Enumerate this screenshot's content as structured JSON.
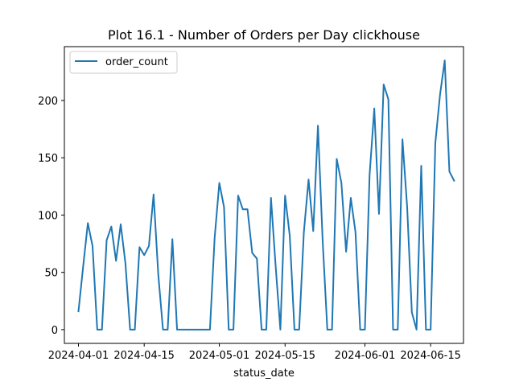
{
  "chart_data": {
    "type": "line",
    "title": "Plot 16.1 - Number of Orders per Day clickhouse",
    "xlabel": "status_date",
    "ylabel": "",
    "x_ticks": [
      "2024-04-01",
      "2024-04-15",
      "2024-05-01",
      "2024-05-15",
      "2024-06-01",
      "2024-06-15"
    ],
    "y_ticks": [
      0,
      50,
      100,
      150,
      200
    ],
    "xlim": [
      "2024-03-29",
      "2024-06-22"
    ],
    "ylim": [
      -12,
      247
    ],
    "grid": false,
    "legend": {
      "position": "top-left",
      "entries": [
        "order_count"
      ]
    },
    "colors": {
      "order_count": "#1f77b4"
    },
    "series": [
      {
        "name": "order_count",
        "x": [
          "2024-04-01",
          "2024-04-02",
          "2024-04-03",
          "2024-04-04",
          "2024-04-05",
          "2024-04-06",
          "2024-04-07",
          "2024-04-08",
          "2024-04-09",
          "2024-04-10",
          "2024-04-11",
          "2024-04-12",
          "2024-04-13",
          "2024-04-14",
          "2024-04-15",
          "2024-04-16",
          "2024-04-17",
          "2024-04-18",
          "2024-04-19",
          "2024-04-20",
          "2024-04-21",
          "2024-04-22",
          "2024-04-23",
          "2024-04-24",
          "2024-04-25",
          "2024-04-26",
          "2024-04-27",
          "2024-04-28",
          "2024-04-29",
          "2024-04-30",
          "2024-05-01",
          "2024-05-02",
          "2024-05-03",
          "2024-05-04",
          "2024-05-05",
          "2024-05-06",
          "2024-05-07",
          "2024-05-08",
          "2024-05-09",
          "2024-05-10",
          "2024-05-11",
          "2024-05-12",
          "2024-05-13",
          "2024-05-14",
          "2024-05-15",
          "2024-05-16",
          "2024-05-17",
          "2024-05-18",
          "2024-05-19",
          "2024-05-20",
          "2024-05-21",
          "2024-05-22",
          "2024-05-23",
          "2024-05-24",
          "2024-05-25",
          "2024-05-26",
          "2024-05-27",
          "2024-05-28",
          "2024-05-29",
          "2024-05-30",
          "2024-05-31",
          "2024-06-01",
          "2024-06-02",
          "2024-06-03",
          "2024-06-04",
          "2024-06-05",
          "2024-06-06",
          "2024-06-07",
          "2024-06-08",
          "2024-06-09",
          "2024-06-10",
          "2024-06-11",
          "2024-06-12",
          "2024-06-13",
          "2024-06-14",
          "2024-06-15",
          "2024-06-16",
          "2024-06-17",
          "2024-06-18",
          "2024-06-19",
          "2024-06-20"
        ],
        "values": [
          16,
          55,
          93,
          73,
          0,
          0,
          78,
          90,
          60,
          92,
          58,
          0,
          0,
          72,
          65,
          73,
          118,
          48,
          0,
          0,
          79,
          0,
          0,
          0,
          0,
          0,
          0,
          0,
          0,
          80,
          128,
          107,
          0,
          0,
          117,
          105,
          105,
          67,
          62,
          0,
          0,
          115,
          55,
          0,
          117,
          82,
          0,
          0,
          85,
          131,
          86,
          178,
          78,
          0,
          0,
          149,
          128,
          68,
          115,
          85,
          0,
          0,
          135,
          193,
          101,
          214,
          201,
          0,
          0,
          166,
          107,
          15,
          0,
          143,
          0,
          0,
          163,
          205,
          235,
          138,
          130
        ]
      }
    ]
  }
}
